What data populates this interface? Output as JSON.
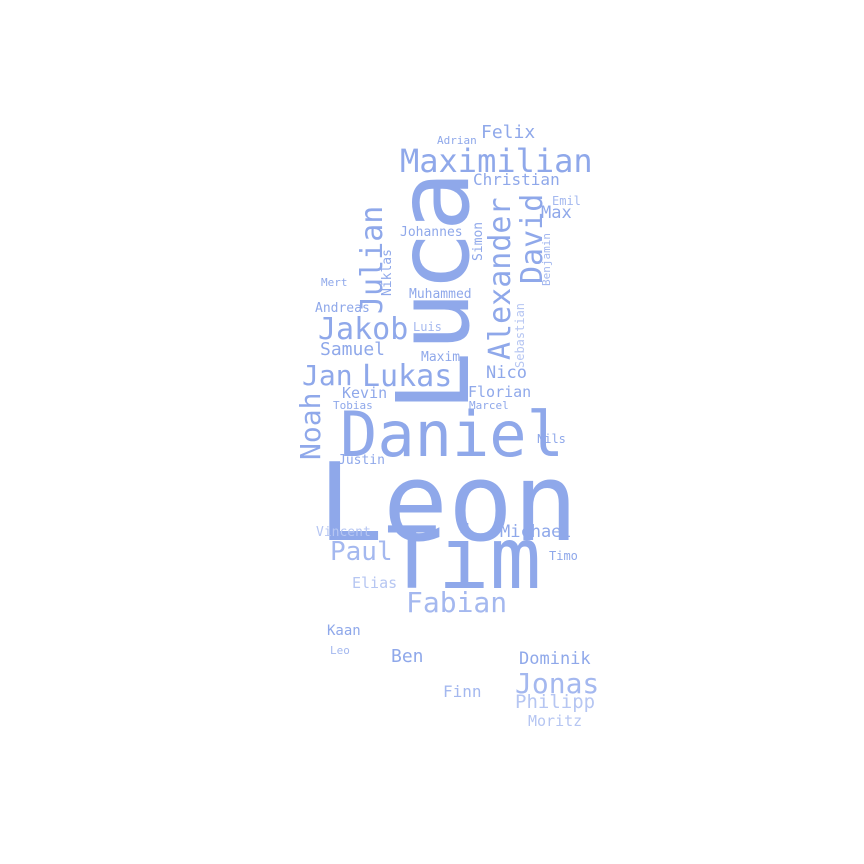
{
  "palette": {
    "dark": "#7f9be6",
    "mid": "#8fa8ea",
    "light": "#a4b8ef",
    "pale": "#b6c6f2"
  },
  "words": {
    "leon": "Leon",
    "tim": "Tim",
    "luca": "Luca",
    "daniel": "Daniel",
    "maximilian": "Maximilian",
    "alexander": "Alexander",
    "david": "David",
    "julian": "Julian",
    "jakob": "Jakob",
    "lukas": "Lukas",
    "jan": "Jan",
    "noah": "Noah",
    "fabian": "Fabian",
    "paul": "Paul",
    "jonas": "Jonas",
    "samuel": "Samuel",
    "felix": "Felix",
    "christian": "Christian",
    "max": "Max",
    "michael": "Michael",
    "philipp": "Philipp",
    "ben": "Ben",
    "dominik": "Dominik",
    "nico": "Nico",
    "florian": "Florian",
    "kevin": "Kevin",
    "johannes": "Johannes",
    "muhammed": "Muhammed",
    "maxim": "Maxim",
    "andreas": "Andreas",
    "justin": "Justin",
    "elias": "Elias",
    "finn": "Finn",
    "kaan": "Kaan",
    "moritz": "Moritz",
    "vincent": "Vincent",
    "simon": "Simon",
    "niklas": "Niklas",
    "sebastian": "Sebastian",
    "benjamin": "Benjamin",
    "emil": "Emil",
    "adrian": "Adrian",
    "mert": "Mert",
    "luis": "Luis",
    "tobias": "Tobias",
    "marcel": "Marcel",
    "nils": "Nils",
    "timo": "Timo",
    "leo_small": "Leo"
  }
}
